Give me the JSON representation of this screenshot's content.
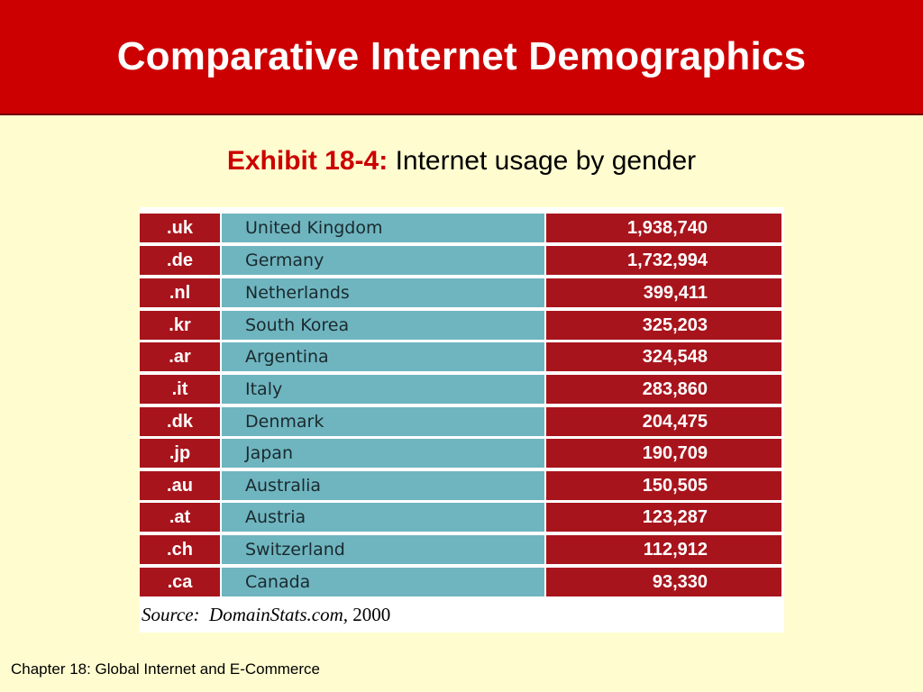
{
  "slide": {
    "title": "Comparative Internet Demographics",
    "exhibit_label": "Exhibit 18-4:",
    "exhibit_desc": "Internet usage by gender",
    "footer": "Chapter 18:  Global Internet and E-Commerce"
  },
  "table": {
    "rows": [
      {
        "code": ".uk",
        "country": "United Kingdom",
        "value": "1,938,740"
      },
      {
        "code": ".de",
        "country": "Germany",
        "value": "1,732,994"
      },
      {
        "code": ".nl",
        "country": "Netherlands",
        "value": "399,411"
      },
      {
        "code": ".kr",
        "country": "South Korea",
        "value": "325,203"
      },
      {
        "code": ".ar",
        "country": "Argentina",
        "value": "324,548"
      },
      {
        "code": ".it",
        "country": "Italy",
        "value": "283,860"
      },
      {
        "code": ".dk",
        "country": "Denmark",
        "value": "204,475"
      },
      {
        "code": ".jp",
        "country": "Japan",
        "value": "190,709"
      },
      {
        "code": ".au",
        "country": "Australia",
        "value": "150,505"
      },
      {
        "code": ".at",
        "country": "Austria",
        "value": "123,287"
      },
      {
        "code": ".ch",
        "country": "Switzerland",
        "value": "112,912"
      },
      {
        "code": ".ca",
        "country": "Canada",
        "value": "93,330"
      }
    ],
    "source_prefix": "Source:",
    "source_site": "DomainStats.com,",
    "source_year": "2000"
  },
  "colors": {
    "title_bar": "#cc0000",
    "background": "#fffdd0",
    "code_cell": "#a8141c",
    "country_cell": "#6fb5c0",
    "exhibit_label": "#cc0000"
  }
}
